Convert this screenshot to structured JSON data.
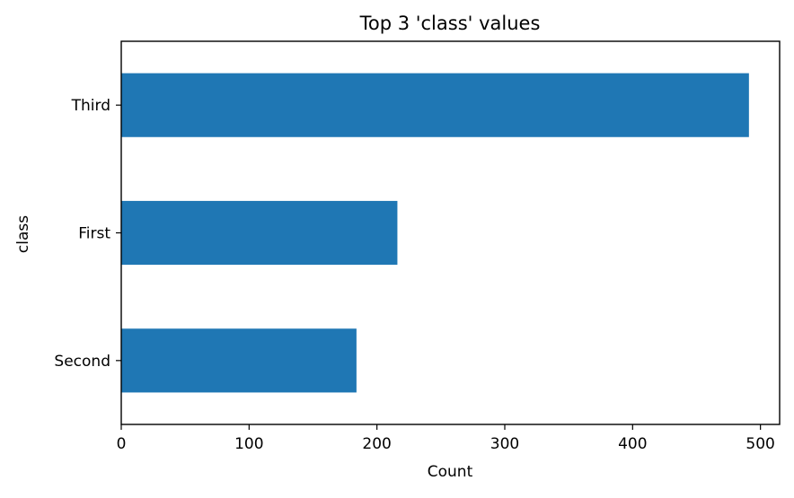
{
  "chart_data": {
    "type": "bar",
    "orientation": "horizontal",
    "title": "Top 3 'class' values",
    "xlabel": "Count",
    "ylabel": "class",
    "categories": [
      "Third",
      "First",
      "Second"
    ],
    "values": [
      491,
      216,
      184
    ],
    "xlim": [
      0,
      515
    ],
    "xticks": [
      0,
      100,
      200,
      300,
      400,
      500
    ],
    "bar_color": "#1f77b4",
    "grid": false,
    "legend": "none"
  }
}
